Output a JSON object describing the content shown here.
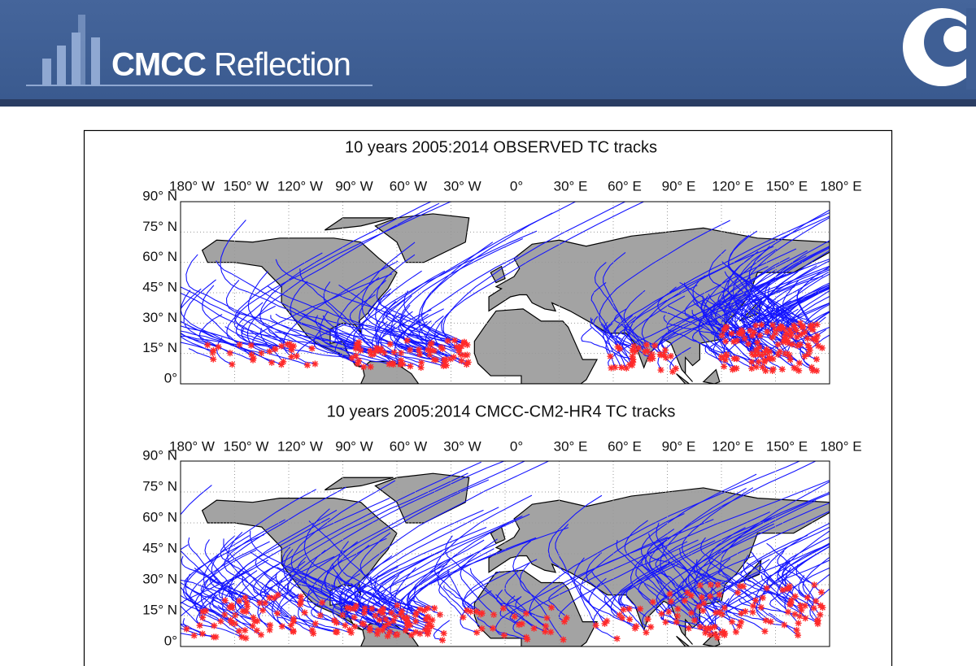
{
  "header": {
    "logo_bold": "CMCC",
    "logo_light": "Reflection"
  },
  "maps": [
    {
      "title": "10 years 2005:2014  OBSERVED TC tracks",
      "x_ticks": [
        "180° W",
        "150° W",
        "120° W",
        "90° W",
        "60° W",
        "30° W",
        "0°",
        "30° E",
        "60° E",
        "90° E",
        "120° E",
        "150° E",
        "180° E"
      ],
      "y_ticks": [
        "90° N",
        "75° N",
        "60° N",
        "45° N",
        "30° N",
        "15° N",
        "0°"
      ]
    },
    {
      "title": "10 years 2005:2014  CMCC-CM2-HR4 TC tracks",
      "x_ticks": [
        "180° W",
        "150° W",
        "120° W",
        "90° W",
        "60° W",
        "30° W",
        "0°",
        "30° E",
        "60° E",
        "90° E",
        "120° E",
        "150° E",
        "180° E"
      ],
      "y_ticks": [
        "90° N",
        "75° N",
        "60° N",
        "45° N",
        "30° N",
        "15° N",
        "0°"
      ]
    }
  ]
}
